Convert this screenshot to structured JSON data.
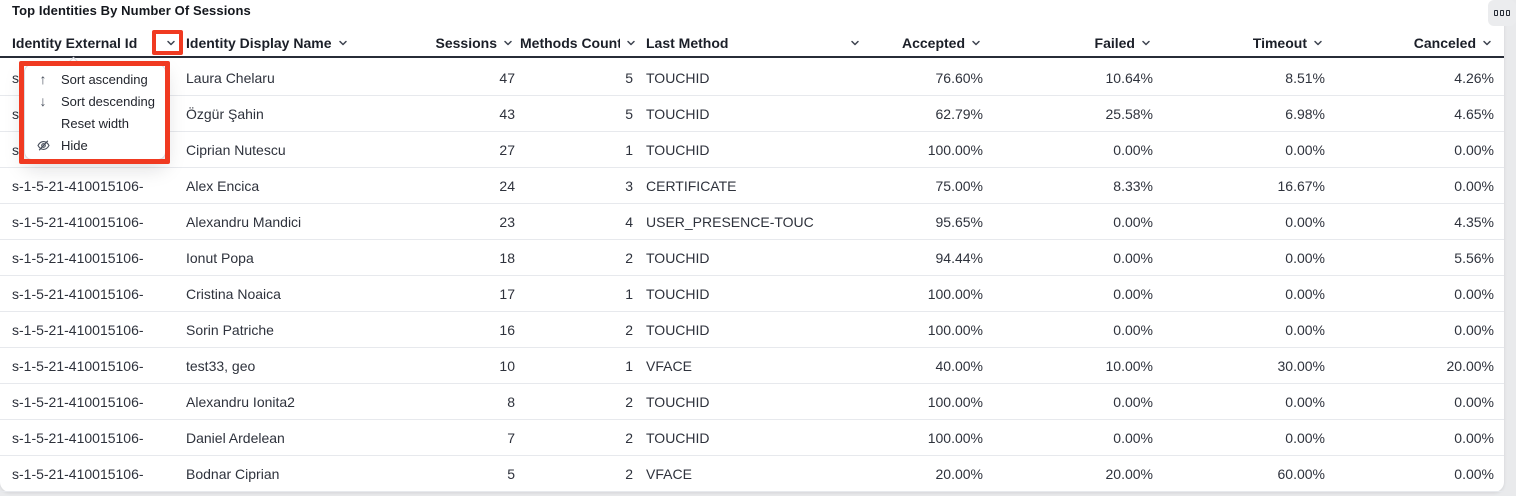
{
  "title": "Top Identities By Number Of Sessions",
  "annotation_color": "#f03a21",
  "toolbar": {
    "options_icon": "three-squares"
  },
  "table": {
    "columns": [
      {
        "id": "identity_external_id",
        "label": "Identity External Id"
      },
      {
        "id": "identity_display_name",
        "label": "Identity Display Name"
      },
      {
        "id": "sessions",
        "label": "Sessions"
      },
      {
        "id": "methods_count",
        "label": "Methods Count"
      },
      {
        "id": "last_method",
        "label": "Last Method"
      },
      {
        "id": "accepted",
        "label": "Accepted"
      },
      {
        "id": "failed",
        "label": "Failed"
      },
      {
        "id": "timeout",
        "label": "Timeout"
      },
      {
        "id": "canceled",
        "label": "Canceled"
      }
    ],
    "rows": [
      [
        "s-1-5-21-410015106-",
        "Laura Chelaru",
        "47",
        "5",
        "TOUCHID",
        "76.60%",
        "10.64%",
        "8.51%",
        "4.26%"
      ],
      [
        "s-1-5-21-410015106-",
        "Özgür Şahin",
        "43",
        "5",
        "TOUCHID",
        "62.79%",
        "25.58%",
        "6.98%",
        "4.65%"
      ],
      [
        "s-1-5-21-410015106-",
        "Ciprian Nutescu",
        "27",
        "1",
        "TOUCHID",
        "100.00%",
        "0.00%",
        "0.00%",
        "0.00%"
      ],
      [
        "s-1-5-21-410015106-",
        "Alex Encica",
        "24",
        "3",
        "CERTIFICATE",
        "75.00%",
        "8.33%",
        "16.67%",
        "0.00%"
      ],
      [
        "s-1-5-21-410015106-",
        "Alexandru Mandici",
        "23",
        "4",
        "USER_PRESENCE-TOUC",
        "95.65%",
        "0.00%",
        "0.00%",
        "4.35%"
      ],
      [
        "s-1-5-21-410015106-",
        "Ionut Popa",
        "18",
        "2",
        "TOUCHID",
        "94.44%",
        "0.00%",
        "0.00%",
        "5.56%"
      ],
      [
        "s-1-5-21-410015106-",
        "Cristina Noaica",
        "17",
        "1",
        "TOUCHID",
        "100.00%",
        "0.00%",
        "0.00%",
        "0.00%"
      ],
      [
        "s-1-5-21-410015106-",
        "Sorin Patriche",
        "16",
        "2",
        "TOUCHID",
        "100.00%",
        "0.00%",
        "0.00%",
        "0.00%"
      ],
      [
        "s-1-5-21-410015106-",
        "test33, geo",
        "10",
        "1",
        "VFACE",
        "40.00%",
        "10.00%",
        "30.00%",
        "20.00%"
      ],
      [
        "s-1-5-21-410015106-",
        "Alexandru Ionita2",
        "8",
        "2",
        "TOUCHID",
        "100.00%",
        "0.00%",
        "0.00%",
        "0.00%"
      ],
      [
        "s-1-5-21-410015106-",
        "Daniel Ardelean",
        "7",
        "2",
        "TOUCHID",
        "100.00%",
        "0.00%",
        "0.00%",
        "0.00%"
      ],
      [
        "s-1-5-21-410015106-",
        "Bodnar Ciprian",
        "5",
        "2",
        "VFACE",
        "20.00%",
        "20.00%",
        "60.00%",
        "0.00%"
      ]
    ]
  },
  "column_menu": {
    "items": [
      {
        "icon": "arrow-up-icon",
        "glyph": "↑",
        "label": "Sort ascending"
      },
      {
        "icon": "arrow-down-icon",
        "glyph": "↓",
        "label": "Sort descending"
      },
      {
        "icon": "",
        "glyph": "",
        "label": "Reset width"
      },
      {
        "icon": "eye-slash-icon",
        "glyph": "",
        "label": "Hide"
      }
    ]
  }
}
